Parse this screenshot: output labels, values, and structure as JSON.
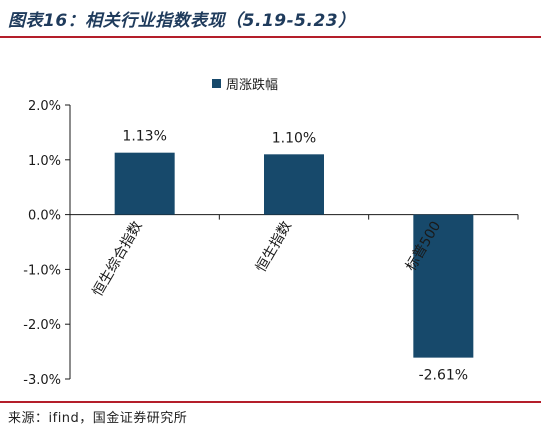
{
  "header": {
    "title": "图表16：相关行业指数表现（5.19-5.23）"
  },
  "footer": {
    "source": "来源：ifind，国金证券研究所"
  },
  "chart_data": {
    "type": "bar",
    "categories": [
      "恒生综合指数",
      "恒生指数",
      "标普500"
    ],
    "series": [
      {
        "name": "周涨跌幅",
        "values": [
          1.13,
          1.1,
          -2.61
        ],
        "color": "#17496b"
      }
    ],
    "data_labels": [
      "1.13%",
      "1.10%",
      "-2.61%"
    ],
    "y_ticks": [
      2.0,
      1.0,
      0.0,
      -1.0,
      -2.0,
      -3.0
    ],
    "y_tick_labels": [
      "2.0%",
      "1.0%",
      "0.0%",
      "-1.0%",
      "-2.0%",
      "-3.0%"
    ],
    "ylim": [
      -3.0,
      2.0
    ],
    "legend_position": "top-center",
    "grid": false
  }
}
